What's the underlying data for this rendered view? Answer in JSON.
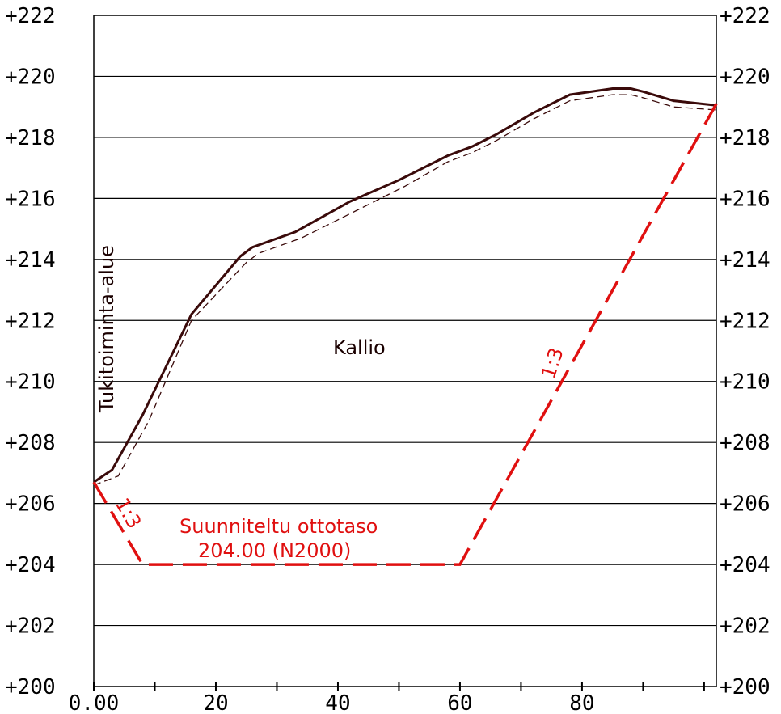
{
  "chart_data": {
    "type": "line",
    "x_tick_labels": [
      "0.00",
      "20",
      "40",
      "60",
      "80"
    ],
    "y_tick_labels": [
      "+200",
      "+202",
      "+204",
      "+206",
      "+208",
      "+210",
      "+212",
      "+214",
      "+216",
      "+218",
      "+220",
      "+222"
    ],
    "xlim": [
      0,
      102
    ],
    "ylim": [
      200,
      222
    ],
    "grid": true,
    "series": [
      {
        "style": "solid",
        "color": "#3a0a0a",
        "x": [
          0,
          3,
          8,
          16,
          24,
          26,
          33,
          42,
          50,
          58,
          62,
          66,
          72,
          78,
          85,
          88,
          90,
          95,
          102
        ],
        "y": [
          206.7,
          207.1,
          208.9,
          212.2,
          214.1,
          214.4,
          214.9,
          215.9,
          216.6,
          217.4,
          217.7,
          218.1,
          218.8,
          219.4,
          219.6,
          219.6,
          219.5,
          219.2,
          219.05
        ]
      },
      {
        "style": "dashed",
        "color": "#3a0a0a",
        "x": [
          0,
          4,
          9,
          16,
          25,
          27,
          34,
          43,
          51,
          58,
          62,
          66,
          72,
          78,
          85,
          88,
          90,
          95,
          102
        ],
        "y": [
          206.6,
          206.9,
          208.7,
          212.0,
          213.9,
          214.2,
          214.7,
          215.6,
          216.4,
          217.2,
          217.5,
          217.9,
          218.6,
          219.2,
          219.4,
          219.4,
          219.3,
          219.0,
          218.9
        ]
      },
      {
        "name": "Suunniteltu ottotaso",
        "style": "long-dash",
        "color": "#e01010",
        "x": [
          0,
          8,
          60,
          102
        ],
        "y": [
          206.7,
          204.0,
          204.0,
          219.1
        ]
      }
    ],
    "annotations": {
      "area_left": "Tukitoiminta-alue",
      "rock": "Kallio",
      "slope_left": "1:3",
      "slope_right": "1:3",
      "plan_level_line1": "Suunniteltu ottotaso",
      "plan_level_line2": "204.00 (N2000)"
    }
  }
}
